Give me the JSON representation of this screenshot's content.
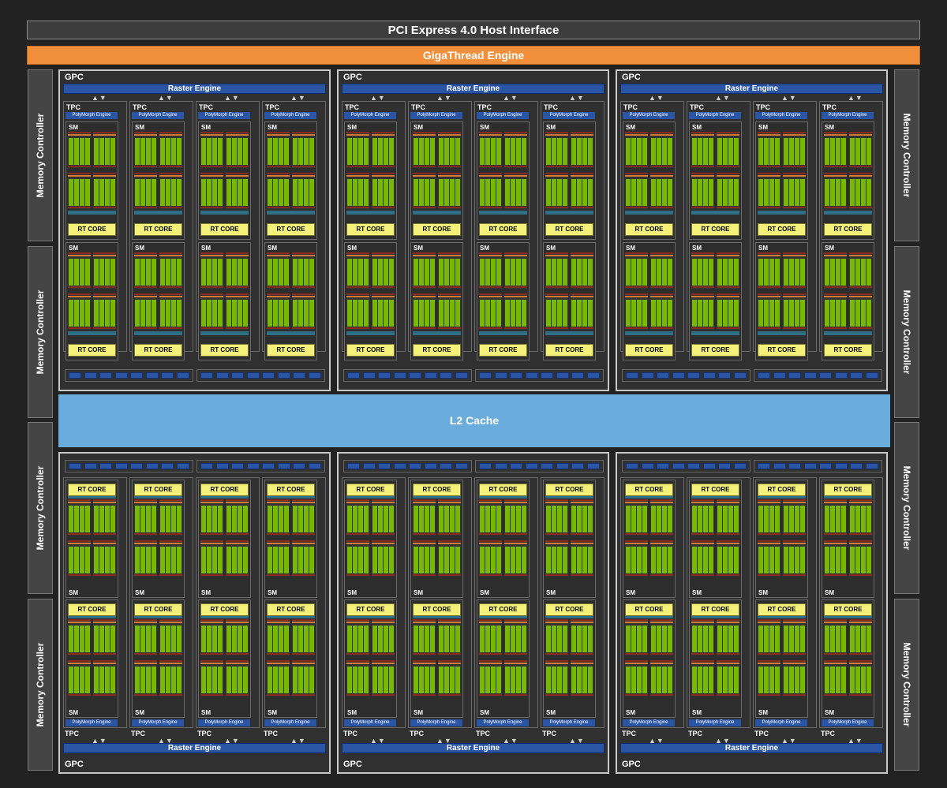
{
  "pci_label": "PCI Express 4.0 Host Interface",
  "gigathread_label": "GigaThread Engine",
  "memory_controller_label": "Memory Controller",
  "l2_label": "L2 Cache",
  "gpc_label": "GPC",
  "raster_label": "Raster Engine",
  "tpc_label": "TPC",
  "polymorph_label": "PolyMorph Engine",
  "sm_label": "SM",
  "rt_core_label": "RT CORE",
  "layout": {
    "gpc_rows": 2,
    "gpcs_per_row": 3,
    "tpcs_per_gpc": 4,
    "sms_per_tpc": 2,
    "memory_controllers_per_side": 4
  },
  "colors": {
    "background": "#222222",
    "gigathread": "#f28f3b",
    "l2_cache": "#6aacdc",
    "raster": "#2a55a5",
    "rt_core": "#f4f17a",
    "cuda_core": "#76b900"
  }
}
